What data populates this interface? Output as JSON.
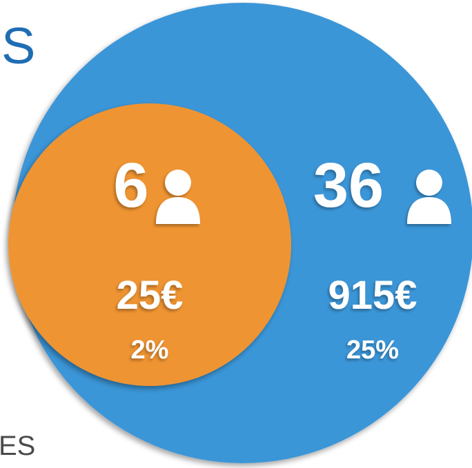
{
  "heading_fragment": "S",
  "footer_fragment": "ES",
  "groups": [
    {
      "count": "6",
      "amount": "25€",
      "share": "2%"
    },
    {
      "count": "36",
      "amount": "915€",
      "share": "25%"
    }
  ]
}
